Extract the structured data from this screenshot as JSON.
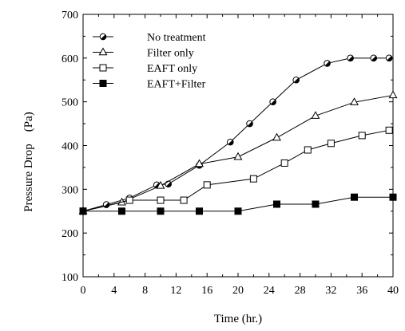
{
  "chart_data": {
    "type": "line",
    "title": "",
    "xlabel": "Time (hr.)",
    "ylabel": "Pressure Drop    (Pa)",
    "xlim": [
      0,
      40
    ],
    "ylim": [
      100,
      700
    ],
    "xticks": [
      0,
      4,
      8,
      12,
      16,
      20,
      24,
      28,
      32,
      36,
      40
    ],
    "yticks": [
      100,
      200,
      300,
      400,
      500,
      600,
      700
    ],
    "grid": false,
    "legend_position": "top-left",
    "series": [
      {
        "name": "No treatment",
        "marker": "half-filled-circle",
        "x": [
          0,
          3,
          6,
          9.5,
          11,
          15,
          19,
          21.5,
          24.5,
          27.5,
          31.5,
          34.5,
          37.5,
          39.5
        ],
        "y": [
          250,
          265,
          280,
          310,
          312,
          355,
          408,
          450,
          500,
          550,
          588,
          600,
          600,
          600
        ]
      },
      {
        "name": "Filter only",
        "marker": "open-triangle",
        "x": [
          0,
          5,
          10,
          15,
          20,
          25,
          30,
          35,
          40
        ],
        "y": [
          250,
          270,
          308,
          358,
          374,
          418,
          468,
          499,
          515
        ]
      },
      {
        "name": "EAFT only",
        "marker": "open-square",
        "x": [
          0,
          6,
          10,
          13,
          16,
          22,
          26,
          29,
          32,
          36,
          39.5
        ],
        "y": [
          250,
          275,
          275,
          275,
          310,
          324,
          360,
          390,
          405,
          423,
          435
        ]
      },
      {
        "name": "EAFT+Filter",
        "marker": "filled-square",
        "x": [
          0,
          5,
          10,
          15,
          20,
          25,
          30,
          35,
          40
        ],
        "y": [
          250,
          250,
          250,
          250,
          250,
          266,
          266,
          282,
          282
        ]
      }
    ]
  }
}
